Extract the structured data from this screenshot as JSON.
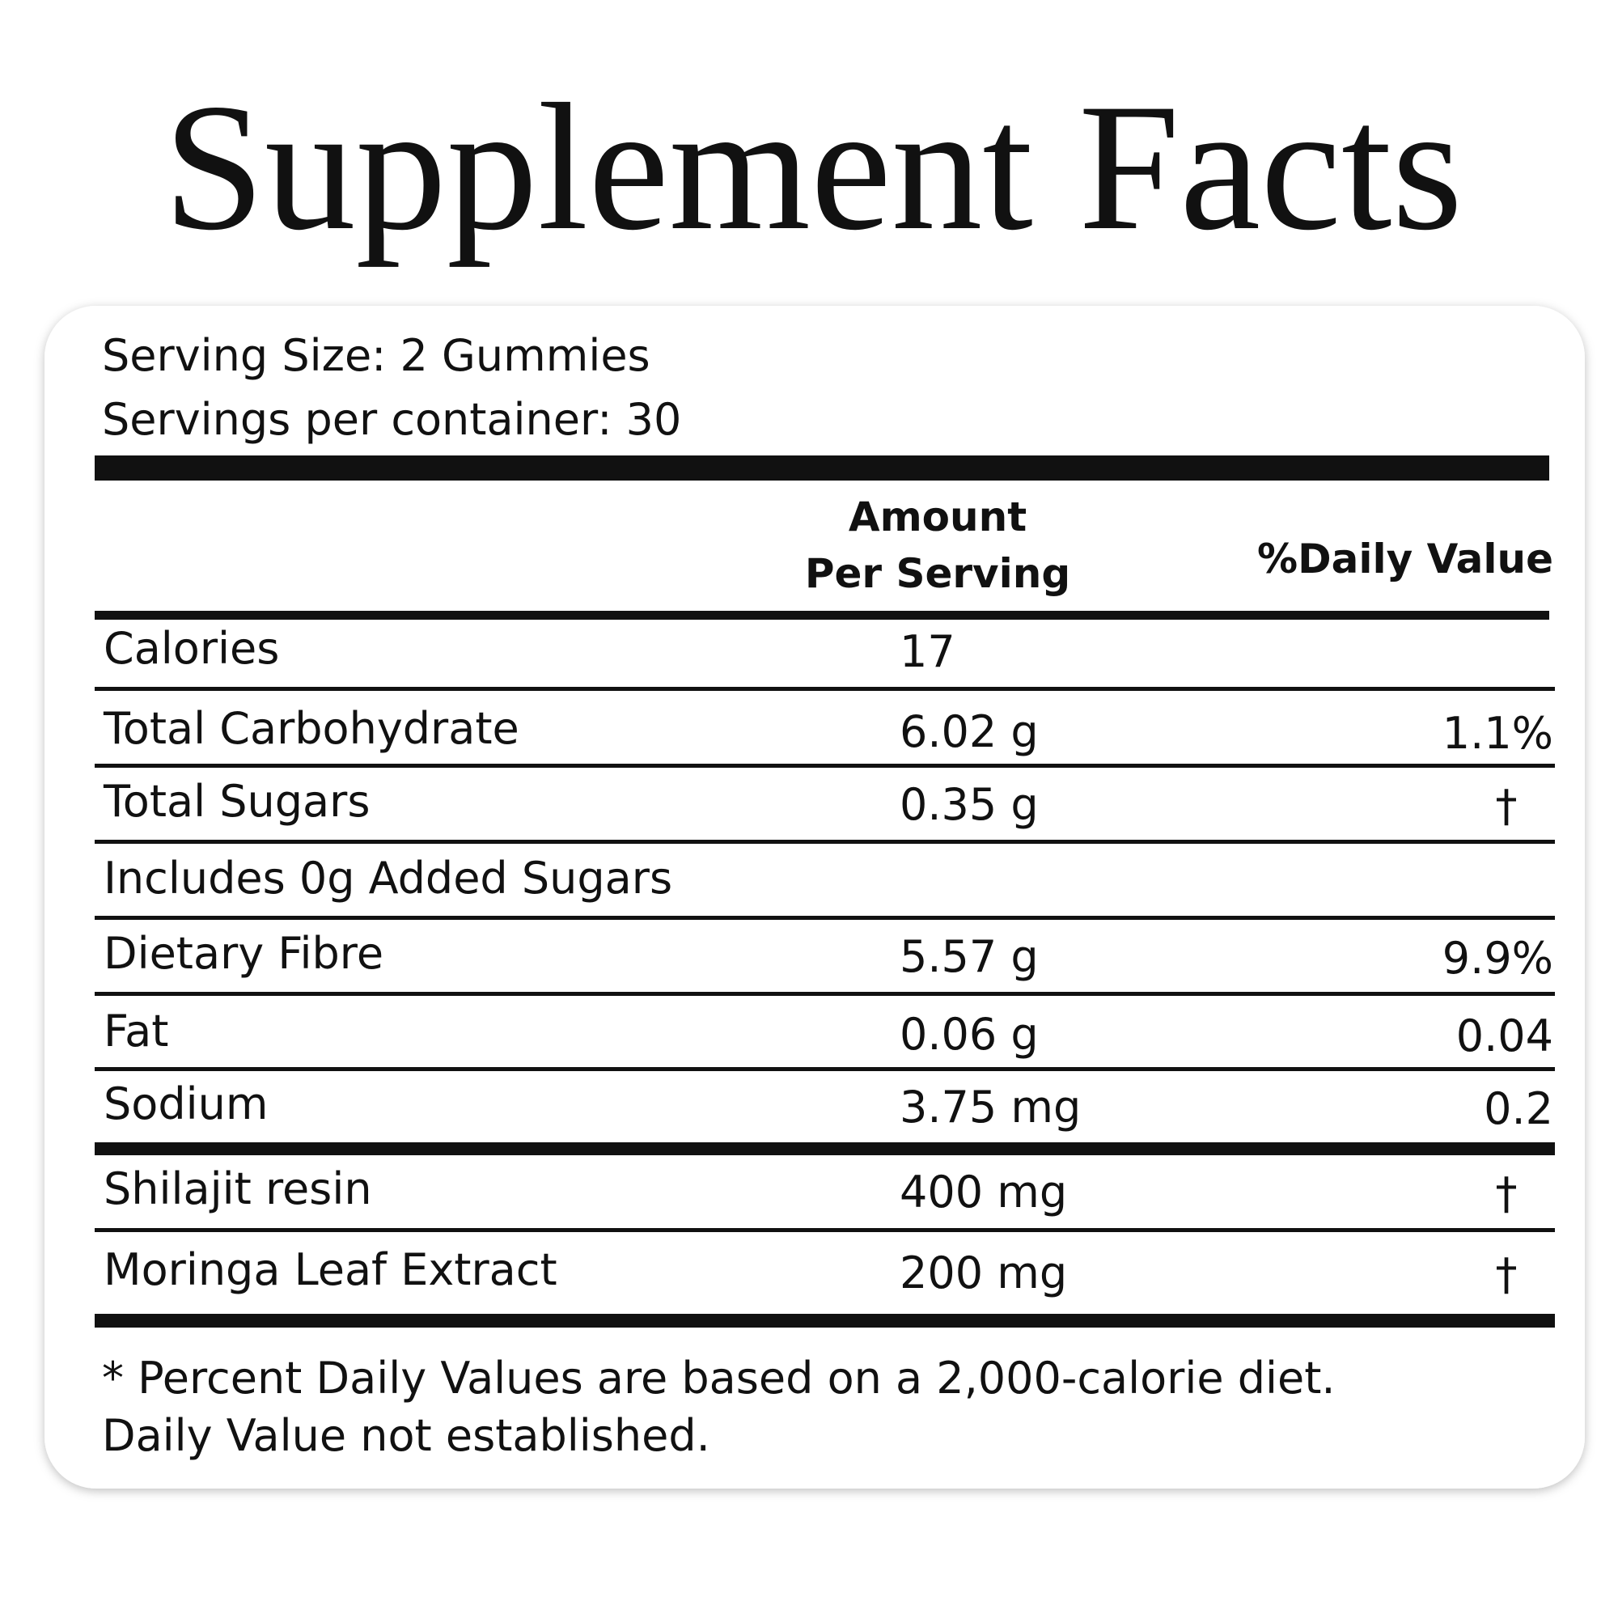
{
  "header": {
    "title": "Supplement Facts"
  },
  "serving": {
    "size": "Serving Size: 2 Gummies",
    "per_container": "Servings per container: 30"
  },
  "table": {
    "columns": [
      "Amount Per Serving",
      "%Daily Value"
    ],
    "rows": [
      [
        "Calories",
        "17",
        null
      ],
      [
        "Total Carbohydrate",
        "6.02 g",
        "1.1%"
      ],
      [
        "Total Sugars",
        "0.35 g",
        "†"
      ],
      [
        "Includes 0g Added Sugars",
        null,
        null
      ],
      [
        "Dietary Fibre",
        "5.57 g",
        "9.9%"
      ],
      [
        "Fat",
        "0.06 g",
        "0.04"
      ],
      [
        "Sodium",
        "3.75 mg",
        "0.2"
      ],
      [
        "Shilajit resin",
        "400 mg",
        "†"
      ],
      [
        "Moringa Leaf Extract",
        "200 mg",
        "†"
      ]
    ]
  },
  "footnotes": [
    "* Percent Daily Values are based on a 2,000-calorie diet.",
    "Daily Value not established."
  ]
}
